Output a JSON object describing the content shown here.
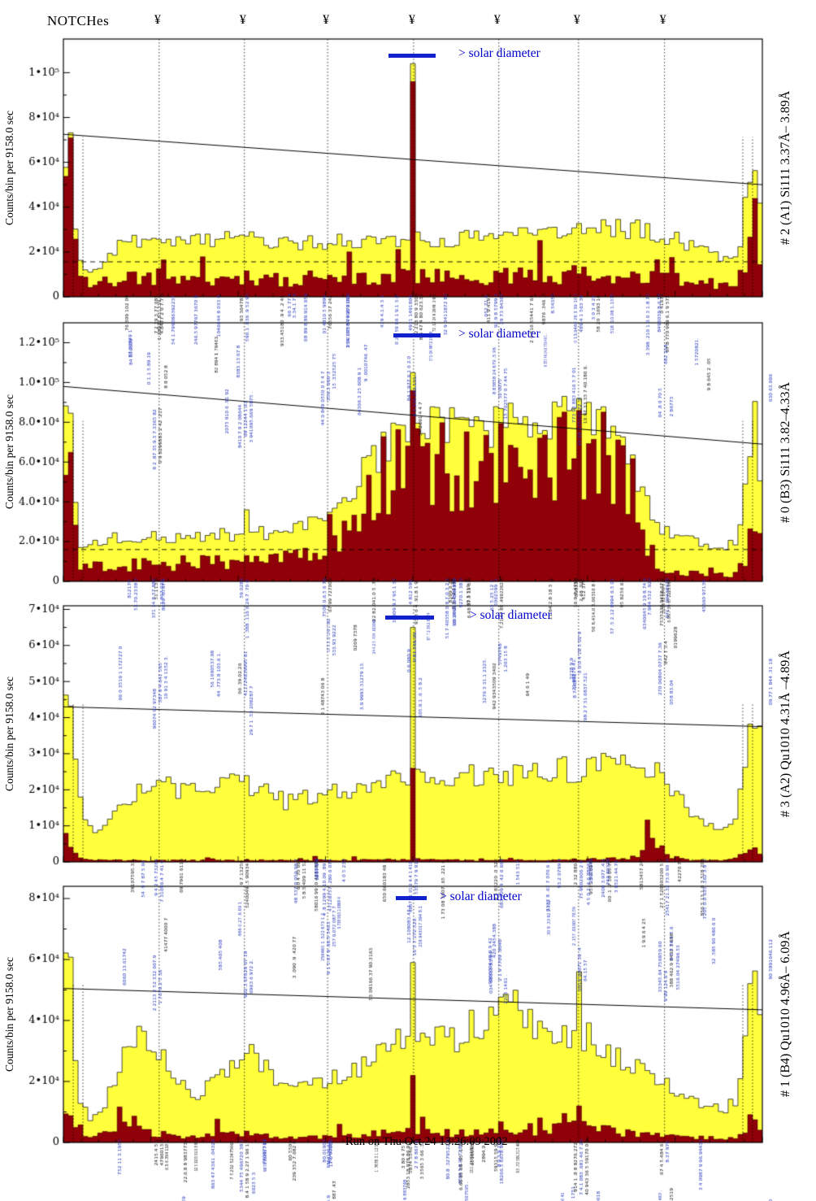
{
  "header": {
    "notches_label": "NOTCHes",
    "notch_symbol": "¥",
    "notch_count": 7,
    "notch_fracs": [
      0.137,
      0.259,
      0.378,
      0.501,
      0.623,
      0.737,
      0.86
    ]
  },
  "footer": {
    "run_line": "Run on Thu Oct 24 13:26:09 2002"
  },
  "colors": {
    "histogram_yellow": "#ffff3c",
    "histogram_maroon": "#8f0008",
    "annotation_blue": "#2233bb",
    "solar_bar_blue": "#1122cc",
    "solar_text_blue": "#0000cc",
    "axis_black": "#000000"
  },
  "chart_data": [
    {
      "type": "histogram",
      "right_label": "# 2 (A1) Si111  3.37Å– 3.89Å",
      "ylabel": "Counts/bin per  9158.0 sec",
      "solar_label": "> solar diameter",
      "ylim": [
        0,
        115000
      ],
      "yticks": {
        "values": [
          0,
          20000,
          40000,
          60000,
          80000,
          100000
        ],
        "labels": [
          "0",
          "2•10⁴",
          "4•10⁴",
          "6•10⁴",
          "8•10⁴",
          "1•10⁵"
        ]
      },
      "trend_line": {
        "y_left": 72500,
        "y_right": 50000
      },
      "dashed_hline": 15600,
      "dashed_vlines_edge": [
        0.014,
        0.028,
        0.972,
        0.986
      ],
      "bins": 143,
      "seed": 11,
      "yellow_envelope": [
        [
          0.0,
          3000
        ],
        [
          0.005,
          81000
        ],
        [
          0.01,
          74000
        ],
        [
          0.016,
          40000
        ],
        [
          0.022,
          18000
        ],
        [
          0.032,
          12000
        ],
        [
          0.045,
          12500
        ],
        [
          0.06,
          16000
        ],
        [
          0.08,
          22000
        ],
        [
          0.11,
          26000
        ],
        [
          0.15,
          24000
        ],
        [
          0.2,
          25000
        ],
        [
          0.26,
          26000
        ],
        [
          0.32,
          24000
        ],
        [
          0.4,
          24500
        ],
        [
          0.47,
          25000
        ],
        [
          0.54,
          25500
        ],
        [
          0.6,
          26000
        ],
        [
          0.66,
          27500
        ],
        [
          0.72,
          29500
        ],
        [
          0.78,
          31000
        ],
        [
          0.83,
          30000
        ],
        [
          0.87,
          27000
        ],
        [
          0.9,
          23000
        ],
        [
          0.93,
          20000
        ],
        [
          0.955,
          15000
        ],
        [
          0.968,
          24000
        ],
        [
          0.978,
          45000
        ],
        [
          0.988,
          62000
        ],
        [
          1.0,
          38000
        ]
      ],
      "maroon_envelope": [
        [
          0.0,
          2000
        ],
        [
          0.005,
          74000
        ],
        [
          0.01,
          66000
        ],
        [
          0.016,
          30000
        ],
        [
          0.022,
          10000
        ],
        [
          0.04,
          5500
        ],
        [
          0.07,
          7500
        ],
        [
          0.11,
          9000
        ],
        [
          0.2,
          8000
        ],
        [
          0.3,
          8200
        ],
        [
          0.4,
          8000
        ],
        [
          0.5,
          8800
        ],
        [
          0.6,
          9000
        ],
        [
          0.7,
          9800
        ],
        [
          0.8,
          9800
        ],
        [
          0.87,
          8000
        ],
        [
          0.92,
          6000
        ],
        [
          0.955,
          5000
        ],
        [
          0.975,
          15000
        ],
        [
          0.988,
          33000
        ],
        [
          1.0,
          20000
        ]
      ],
      "spikes": [
        [
          0.501,
          104000,
          96000
        ]
      ]
    },
    {
      "type": "histogram",
      "right_label": "# 0 (B3) Si111  3.82–4.33Å",
      "ylabel": "Counts/bin per  9158.0 sec",
      "solar_label": "> solar diameter",
      "ylim": [
        0,
        130000
      ],
      "yticks": {
        "values": [
          0,
          20000,
          40000,
          60000,
          80000,
          100000,
          120000
        ],
        "labels": [
          "0",
          "2.0•10⁴",
          "4.0•10⁴",
          "6.0•10⁴",
          "8.0•10⁴",
          "1.0•10⁵",
          "1.2•10⁵"
        ]
      },
      "trend_line": {
        "y_left": 98000,
        "y_right": 69000
      },
      "dashed_hline": 16000,
      "dashed_vlines_edge": [
        0.014,
        0.028,
        0.972,
        0.986
      ],
      "bins": 143,
      "seed": 22,
      "yellow_envelope": [
        [
          0.0,
          4000
        ],
        [
          0.005,
          120000
        ],
        [
          0.01,
          97000
        ],
        [
          0.016,
          45000
        ],
        [
          0.024,
          20000
        ],
        [
          0.04,
          18000
        ],
        [
          0.06,
          22000
        ],
        [
          0.1,
          23000
        ],
        [
          0.15,
          22000
        ],
        [
          0.2,
          22500
        ],
        [
          0.26,
          24000
        ],
        [
          0.3,
          24000
        ],
        [
          0.34,
          27000
        ],
        [
          0.37,
          31000
        ],
        [
          0.4,
          40000
        ],
        [
          0.43,
          56000
        ],
        [
          0.46,
          68000
        ],
        [
          0.49,
          75000
        ],
        [
          0.52,
          78000
        ],
        [
          0.56,
          80000
        ],
        [
          0.6,
          77000
        ],
        [
          0.64,
          82000
        ],
        [
          0.68,
          79000
        ],
        [
          0.72,
          83000
        ],
        [
          0.76,
          81000
        ],
        [
          0.79,
          74000
        ],
        [
          0.815,
          60000
        ],
        [
          0.835,
          38000
        ],
        [
          0.855,
          26000
        ],
        [
          0.88,
          21000
        ],
        [
          0.92,
          19000
        ],
        [
          0.95,
          17000
        ],
        [
          0.965,
          22000
        ],
        [
          0.978,
          50000
        ],
        [
          0.988,
          86000
        ],
        [
          1.0,
          45000
        ]
      ],
      "maroon_envelope": [
        [
          0.0,
          2500
        ],
        [
          0.005,
          99000
        ],
        [
          0.01,
          78000
        ],
        [
          0.016,
          28000
        ],
        [
          0.024,
          9000
        ],
        [
          0.05,
          8500
        ],
        [
          0.1,
          9000
        ],
        [
          0.16,
          8800
        ],
        [
          0.22,
          9500
        ],
        [
          0.28,
          10500
        ],
        [
          0.33,
          13000
        ],
        [
          0.37,
          18000
        ],
        [
          0.4,
          28000
        ],
        [
          0.43,
          44000
        ],
        [
          0.46,
          55000
        ],
        [
          0.49,
          60000
        ],
        [
          0.52,
          62000
        ],
        [
          0.56,
          64000
        ],
        [
          0.6,
          60000
        ],
        [
          0.64,
          66000
        ],
        [
          0.68,
          62000
        ],
        [
          0.72,
          66000
        ],
        [
          0.76,
          64000
        ],
        [
          0.79,
          57000
        ],
        [
          0.815,
          42000
        ],
        [
          0.835,
          18000
        ],
        [
          0.855,
          7000
        ],
        [
          0.89,
          4000
        ],
        [
          0.93,
          3000
        ],
        [
          0.96,
          3500
        ],
        [
          0.978,
          14000
        ],
        [
          0.988,
          30000
        ],
        [
          1.0,
          12000
        ]
      ],
      "spikes": [
        [
          0.259,
          36000,
          13000
        ],
        [
          0.501,
          105000,
          96000
        ],
        [
          0.737,
          92000,
          86000
        ]
      ]
    },
    {
      "type": "histogram",
      "right_label": "# 3 (A2) Qu1010  4.31Å –4.89Å",
      "ylabel": "Counts/bin per  9158.0 sec",
      "solar_label": "> solar diameter",
      "ylim": [
        0,
        71000
      ],
      "yticks": {
        "values": [
          0,
          10000,
          20000,
          30000,
          40000,
          50000,
          60000,
          70000
        ],
        "labels": [
          "0",
          "1•10⁴",
          "2•10⁴",
          "3•10⁴",
          "4•10⁴",
          "5•10⁴",
          "6•10⁴",
          "7•10⁴"
        ]
      },
      "trend_line": {
        "y_left": 43000,
        "y_right": 37500
      },
      "dashed_hline": null,
      "dashed_vlines_edge": [
        0.014,
        0.028,
        0.972,
        0.986
      ],
      "bins": 143,
      "seed": 33,
      "yellow_envelope": [
        [
          0.0,
          5000
        ],
        [
          0.005,
          63000
        ],
        [
          0.01,
          52000
        ],
        [
          0.016,
          34000
        ],
        [
          0.024,
          16000
        ],
        [
          0.04,
          9000
        ],
        [
          0.06,
          10000
        ],
        [
          0.08,
          14000
        ],
        [
          0.1,
          18500
        ],
        [
          0.13,
          21000
        ],
        [
          0.17,
          20000
        ],
        [
          0.21,
          19500
        ],
        [
          0.25,
          22000
        ],
        [
          0.29,
          19000
        ],
        [
          0.32,
          16500
        ],
        [
          0.35,
          17500
        ],
        [
          0.38,
          19500
        ],
        [
          0.42,
          21000
        ],
        [
          0.46,
          22500
        ],
        [
          0.5,
          24000
        ],
        [
          0.54,
          24500
        ],
        [
          0.58,
          23500
        ],
        [
          0.62,
          24500
        ],
        [
          0.66,
          24000
        ],
        [
          0.7,
          25000
        ],
        [
          0.74,
          26000
        ],
        [
          0.78,
          28000
        ],
        [
          0.82,
          27500
        ],
        [
          0.85,
          25500
        ],
        [
          0.87,
          21000
        ],
        [
          0.895,
          13000
        ],
        [
          0.92,
          10500
        ],
        [
          0.945,
          8500
        ],
        [
          0.962,
          12000
        ],
        [
          0.975,
          30000
        ],
        [
          0.988,
          45000
        ],
        [
          1.0,
          28000
        ]
      ],
      "maroon_envelope": [
        [
          0.0,
          800
        ],
        [
          0.005,
          9000
        ],
        [
          0.012,
          3000
        ],
        [
          0.03,
          600
        ],
        [
          0.1,
          400
        ],
        [
          0.2,
          400
        ],
        [
          0.3,
          500
        ],
        [
          0.4,
          500
        ],
        [
          0.5,
          700
        ],
        [
          0.6,
          400
        ],
        [
          0.7,
          500
        ],
        [
          0.8,
          900
        ],
        [
          0.826,
          1500
        ],
        [
          0.838,
          7000
        ],
        [
          0.85,
          6000
        ],
        [
          0.862,
          1500
        ],
        [
          0.9,
          400
        ],
        [
          0.95,
          400
        ],
        [
          0.975,
          2000
        ],
        [
          0.988,
          3000
        ],
        [
          1.0,
          1500
        ]
      ],
      "spikes": [
        [
          0.501,
          65000,
          26000
        ]
      ]
    },
    {
      "type": "histogram",
      "right_label": "# 1 (B4) Qu1010 4.96Å– 6.09Å",
      "ylabel": "Counts/bin per  9158.0 sec",
      "solar_label": "> solar diameter",
      "ylim": [
        0,
        84000
      ],
      "yticks": {
        "values": [
          0,
          20000,
          40000,
          60000,
          80000
        ],
        "labels": [
          "0",
          "2•10⁴",
          "4•10⁴",
          "6•10⁴",
          "8•10⁴"
        ]
      },
      "trend_line": {
        "y_left": 50500,
        "y_right": 43500
      },
      "dashed_hline": null,
      "dashed_vlines_edge": [
        0.014,
        0.028,
        0.972,
        0.986
      ],
      "bins": 143,
      "seed": 44,
      "yellow_envelope": [
        [
          0.0,
          4000
        ],
        [
          0.005,
          79000
        ],
        [
          0.01,
          58000
        ],
        [
          0.016,
          30000
        ],
        [
          0.024,
          12000
        ],
        [
          0.04,
          8000
        ],
        [
          0.06,
          12000
        ],
        [
          0.08,
          24000
        ],
        [
          0.095,
          33000
        ],
        [
          0.115,
          34000
        ],
        [
          0.135,
          30000
        ],
        [
          0.155,
          24000
        ],
        [
          0.175,
          17000
        ],
        [
          0.195,
          16000
        ],
        [
          0.215,
          20000
        ],
        [
          0.24,
          26000
        ],
        [
          0.265,
          30000
        ],
        [
          0.285,
          26000
        ],
        [
          0.31,
          20000
        ],
        [
          0.335,
          18000
        ],
        [
          0.36,
          19500
        ],
        [
          0.39,
          21000
        ],
        [
          0.42,
          24000
        ],
        [
          0.45,
          29000
        ],
        [
          0.48,
          33000
        ],
        [
          0.51,
          34000
        ],
        [
          0.54,
          35000
        ],
        [
          0.565,
          33000
        ],
        [
          0.585,
          38000
        ],
        [
          0.605,
          36000
        ],
        [
          0.625,
          44000
        ],
        [
          0.645,
          46000
        ],
        [
          0.665,
          40000
        ],
        [
          0.685,
          36000
        ],
        [
          0.705,
          38000
        ],
        [
          0.725,
          36000
        ],
        [
          0.75,
          34500
        ],
        [
          0.775,
          31000
        ],
        [
          0.8,
          27000
        ],
        [
          0.83,
          23000
        ],
        [
          0.86,
          19000
        ],
        [
          0.89,
          15000
        ],
        [
          0.92,
          12500
        ],
        [
          0.945,
          10500
        ],
        [
          0.962,
          14000
        ],
        [
          0.975,
          35000
        ],
        [
          0.988,
          61000
        ],
        [
          1.0,
          40000
        ]
      ],
      "maroon_envelope": [
        [
          0.0,
          800
        ],
        [
          0.005,
          19000
        ],
        [
          0.01,
          8000
        ],
        [
          0.03,
          1500
        ],
        [
          0.06,
          2500
        ],
        [
          0.08,
          6000
        ],
        [
          0.095,
          9000
        ],
        [
          0.11,
          5000
        ],
        [
          0.14,
          2000
        ],
        [
          0.18,
          1800
        ],
        [
          0.22,
          2500
        ],
        [
          0.26,
          3000
        ],
        [
          0.3,
          2000
        ],
        [
          0.35,
          1800
        ],
        [
          0.4,
          2000
        ],
        [
          0.45,
          2800
        ],
        [
          0.5,
          3800
        ],
        [
          0.55,
          3000
        ],
        [
          0.6,
          3300
        ],
        [
          0.65,
          3000
        ],
        [
          0.7,
          4000
        ],
        [
          0.72,
          7500
        ],
        [
          0.74,
          5000
        ],
        [
          0.77,
          4200
        ],
        [
          0.8,
          3200
        ],
        [
          0.84,
          2500
        ],
        [
          0.88,
          1800
        ],
        [
          0.92,
          1400
        ],
        [
          0.95,
          1500
        ],
        [
          0.975,
          3000
        ],
        [
          0.988,
          5500
        ],
        [
          1.0,
          3500
        ]
      ],
      "spikes": [
        [
          0.501,
          59000,
          22000
        ],
        [
          0.737,
          56000,
          12000
        ]
      ]
    }
  ]
}
